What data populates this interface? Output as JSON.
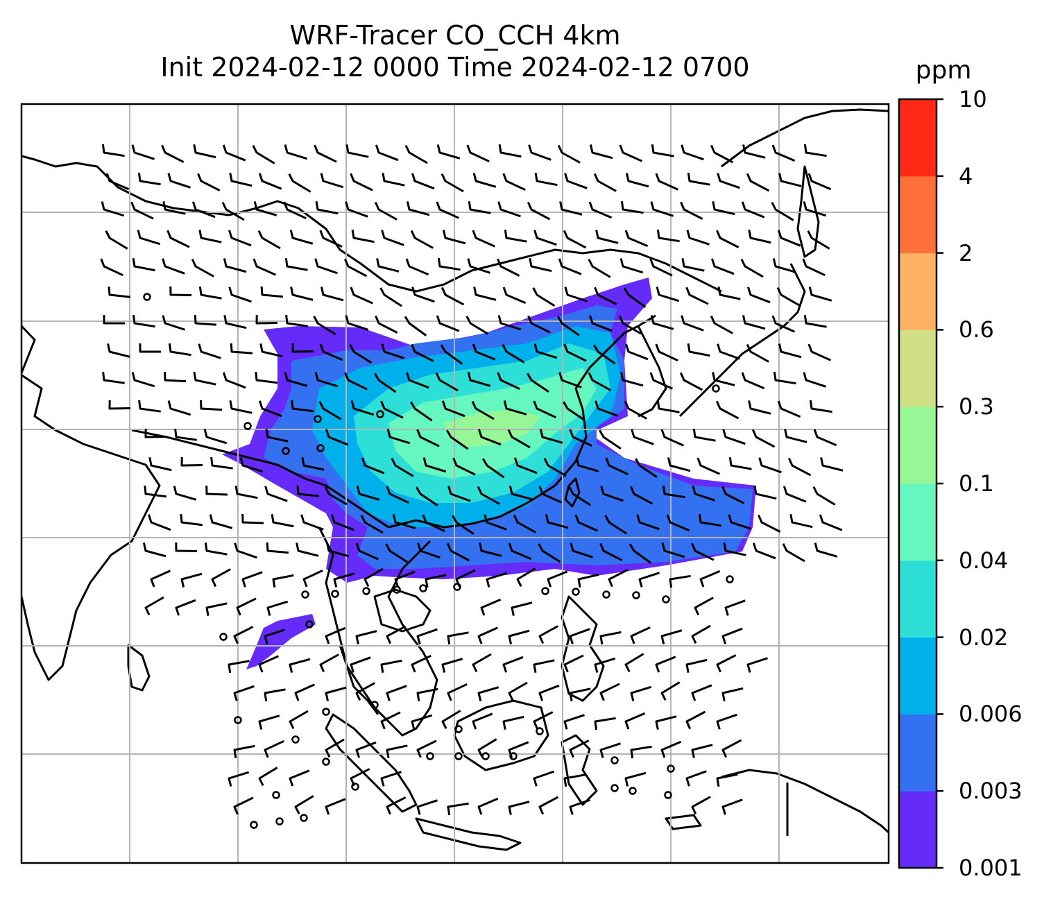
{
  "title": {
    "line1": "WRF-Tracer CO_CCH 4km",
    "line2": "Init 2024-02-12 0000 Time 2024-02-12 0700"
  },
  "colorbar": {
    "unit": "ppm",
    "levels": [
      "0.001",
      "0.003",
      "0.006",
      "0.02",
      "0.04",
      "0.1",
      "0.3",
      "0.6",
      "2",
      "4",
      "10"
    ],
    "colors": [
      "#652bf9",
      "#3471f0",
      "#00b0ea",
      "#2ddfd6",
      "#66f6c0",
      "#97f796",
      "#cfe087",
      "#fdb061",
      "#fe703b",
      "#ff2915"
    ]
  },
  "map": {
    "background": "#ffffff",
    "coastline_color": "#000000",
    "gridline_color": "#b4b4b4",
    "barb_color": "#000000"
  }
}
